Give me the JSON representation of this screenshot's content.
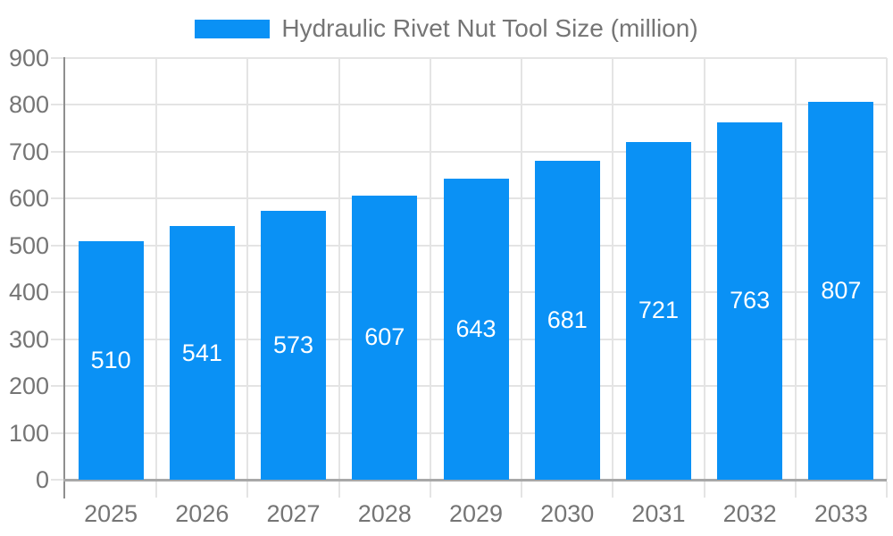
{
  "legend": {
    "label": "Hydraulic Rivet Nut Tool Size (million)"
  },
  "chart_data": {
    "type": "bar",
    "title": "",
    "xlabel": "",
    "ylabel": "",
    "series_name": "Hydraulic Rivet Nut Tool Size (million)",
    "categories": [
      "2025",
      "2026",
      "2027",
      "2028",
      "2029",
      "2030",
      "2031",
      "2032",
      "2033"
    ],
    "values": [
      510,
      541,
      573,
      607,
      643,
      681,
      721,
      763,
      807
    ],
    "ylim": [
      0,
      900
    ],
    "ytick_step": 100,
    "yticks": [
      0,
      100,
      200,
      300,
      400,
      500,
      600,
      700,
      800,
      900
    ],
    "grid": true,
    "legend_position": "top-center",
    "bar_label_position": "middle-of-bar",
    "colors": {
      "bar": "#0a91f5",
      "bar_label": "#ffffff",
      "grid": "#e4e4e4",
      "y_axis_line": "#8f8f8f",
      "x_axis_line": "#a8a8a8",
      "axis_label": "#757575",
      "legend_text": "#757575",
      "background": "#ffffff"
    }
  }
}
